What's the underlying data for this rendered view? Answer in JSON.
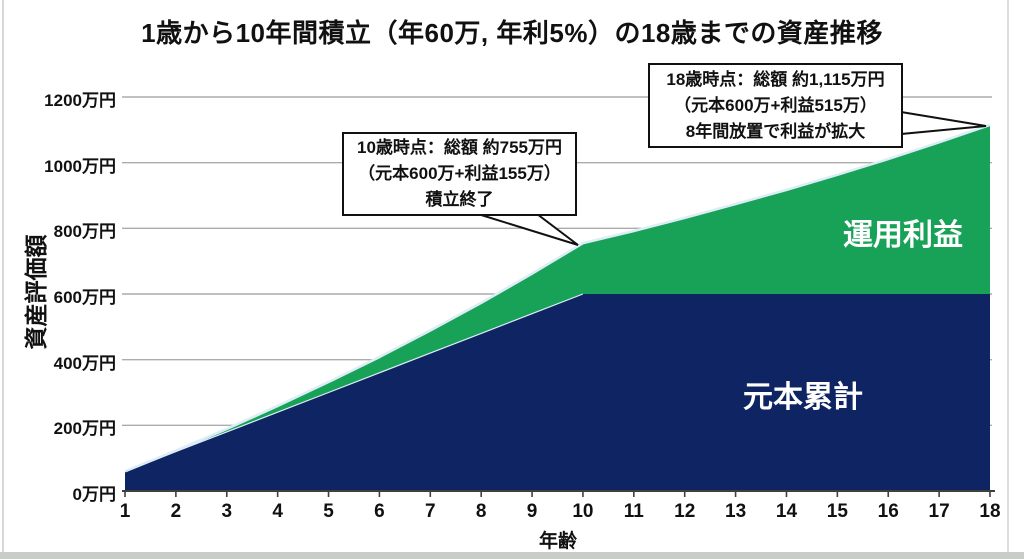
{
  "title": "1歳から10年間積立（年60万, 年利5%）の18歳までの資産推移",
  "colors": {
    "principal": "#0F2563",
    "profit": "#18A257",
    "area_edge": "#DCEDF7",
    "gridline": "#ACACAC",
    "axis": "#3F3F3F",
    "text": "#111111",
    "annotation_border": "#111111",
    "annotation_bg": "#FFFFFF",
    "series_label_text": "#FFFFFF"
  },
  "chart_data": {
    "type": "area",
    "stacked": true,
    "grid": true,
    "title": "1歳から10年間積立（年60万, 年利5%）の18歳までの資産推移",
    "xlabel": "年齢",
    "ylabel": "資産評価額",
    "x": [
      1,
      2,
      3,
      4,
      5,
      6,
      7,
      8,
      9,
      10,
      11,
      12,
      13,
      14,
      15,
      16,
      17,
      18
    ],
    "xtick_labels": [
      "1",
      "2",
      "3",
      "4",
      "5",
      "6",
      "7",
      "8",
      "9",
      "10",
      "11",
      "12",
      "13",
      "14",
      "15",
      "16",
      "17",
      "18"
    ],
    "ylim": [
      0,
      1200
    ],
    "yticks": [
      0,
      200,
      400,
      600,
      800,
      1000,
      1200
    ],
    "ytick_labels": [
      "0万円",
      "200万円",
      "400万円",
      "600万円",
      "800万円",
      "1000万円",
      "1200万円"
    ],
    "legend_position": "labels-inside-areas",
    "series": [
      {
        "name": "元本累計",
        "color": "#0F2563",
        "values": [
          60,
          120,
          180,
          240,
          300,
          360,
          420,
          480,
          540,
          600,
          600,
          600,
          600,
          600,
          600,
          600,
          600,
          600
        ]
      },
      {
        "name": "運用利益",
        "color": "#18A257",
        "values": [
          0,
          3,
          9,
          19,
          32,
          48,
          69,
          93,
          122,
          155,
          192,
          232,
          274,
          317,
          363,
          411,
          462,
          515
        ]
      }
    ],
    "stacked_totals": [
      60,
      123,
      189,
      259,
      332,
      408,
      489,
      573,
      662,
      755,
      792,
      832,
      874,
      917,
      963,
      1011,
      1062,
      1115
    ],
    "annotations": [
      {
        "target": {
          "age": 10,
          "value_man_yen": 755
        },
        "lines": [
          "10歳時点：総額 約755万円",
          "（元本600万+利益155万）",
          "積立終了"
        ]
      },
      {
        "target": {
          "age": 18,
          "value_man_yen": 1115
        },
        "lines": [
          "18歳時点：総額 約1,115万円",
          "（元本600万+利益515万）",
          "8年間放置で利益が拡大"
        ]
      }
    ]
  }
}
